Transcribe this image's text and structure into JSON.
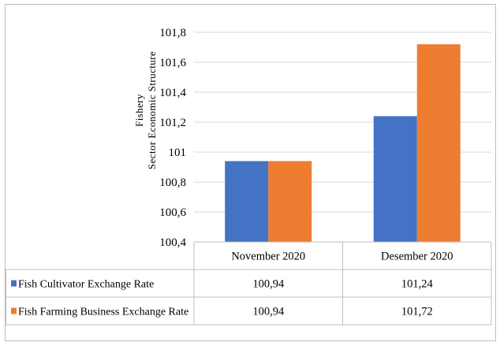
{
  "chart_data": {
    "type": "bar",
    "categories": [
      "November 2020",
      "Desember 2020"
    ],
    "series": [
      {
        "name": "Fish Cultivator Exchange Rate",
        "values": [
          100.94,
          101.24
        ],
        "color": "#4472C4",
        "value_labels": [
          "100,94",
          "101,24"
        ]
      },
      {
        "name": "Fish Farming Business Exchange Rate",
        "values": [
          100.94,
          101.72
        ],
        "color": "#ED7D31",
        "value_labels": [
          "100,94",
          "101,72"
        ]
      }
    ],
    "ylabel_lines": [
      "Fishery",
      "Sector Economic Structure"
    ],
    "ylim": [
      100.4,
      101.8
    ],
    "yticks": [
      100.4,
      100.6,
      100.8,
      101,
      101.2,
      101.4,
      101.6,
      101.8
    ],
    "ytick_labels": [
      "100,4",
      "100,6",
      "100,8",
      "101",
      "101,2",
      "101,4",
      "101,6",
      "101,8"
    ],
    "grid": true,
    "legend_placement": "data-table-below"
  }
}
